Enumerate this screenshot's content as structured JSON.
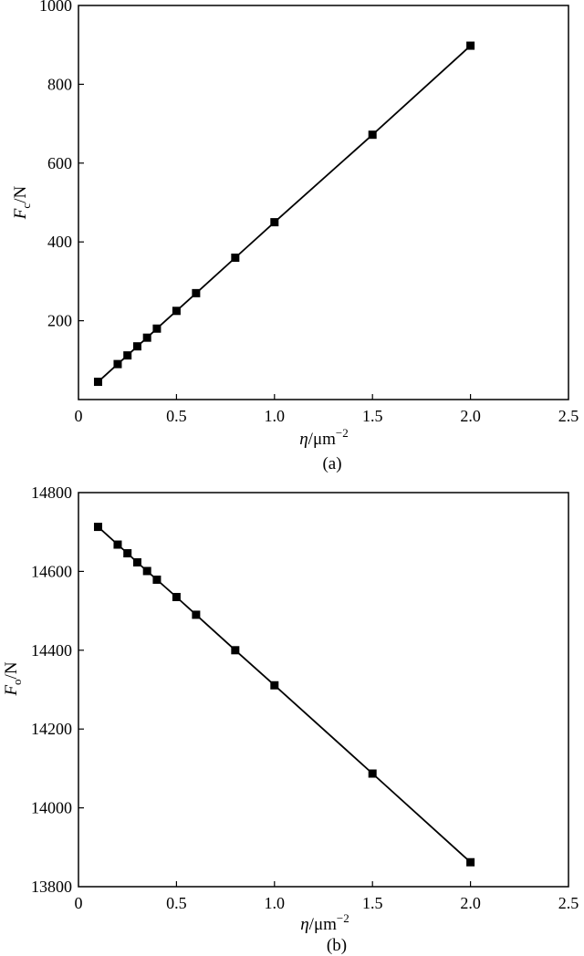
{
  "chart_data": [
    {
      "type": "line",
      "caption": "(a)",
      "ylabel": {
        "main": "F",
        "sub": "c",
        "unit": "/N"
      },
      "xlabel": {
        "main": "η",
        "unit": "/μm",
        "sup": "−2"
      },
      "xlim": [
        0,
        2.5
      ],
      "ylim": [
        0,
        1000
      ],
      "xticks": [
        0,
        0.5,
        1.0,
        1.5,
        2.0,
        2.5
      ],
      "xtick_labels": [
        "0",
        "0.5",
        "1.0",
        "1.5",
        "2.0",
        "2.5"
      ],
      "yticks": [
        200,
        400,
        600,
        800,
        1000
      ],
      "ytick_labels": [
        "200",
        "400",
        "600",
        "800",
        "1000"
      ],
      "grid": false,
      "series": [
        {
          "marker": "square",
          "color": "#000000",
          "x": [
            0.1,
            0.2,
            0.25,
            0.3,
            0.35,
            0.4,
            0.5,
            0.6,
            0.8,
            1.0,
            1.5,
            2.0
          ],
          "y": [
            45,
            90,
            112,
            135,
            157,
            180,
            225,
            270,
            360,
            450,
            672,
            898
          ]
        }
      ]
    },
    {
      "type": "line",
      "caption": "(b)",
      "ylabel": {
        "main": "F",
        "sub": "o",
        "unit": "/N"
      },
      "xlabel": {
        "main": "η",
        "unit": "/μm",
        "sup": "−2"
      },
      "xlim": [
        0,
        2.5
      ],
      "ylim": [
        13800,
        14800
      ],
      "xticks": [
        0,
        0.5,
        1.0,
        1.5,
        2.0,
        2.5
      ],
      "xtick_labels": [
        "0",
        "0.5",
        "1.0",
        "1.5",
        "2.0",
        "2.5"
      ],
      "yticks": [
        13800,
        14000,
        14200,
        14400,
        14600,
        14800
      ],
      "ytick_labels": [
        "13800",
        "14000",
        "14200",
        "14400",
        "14600",
        "14800"
      ],
      "grid": false,
      "series": [
        {
          "marker": "square",
          "color": "#000000",
          "x": [
            0.1,
            0.2,
            0.25,
            0.3,
            0.35,
            0.4,
            0.5,
            0.6,
            0.8,
            1.0,
            1.5,
            2.0
          ],
          "y": [
            14713,
            14668,
            14646,
            14623,
            14601,
            14579,
            14535,
            14490,
            14400,
            14311,
            14087,
            13862
          ]
        }
      ]
    }
  ]
}
